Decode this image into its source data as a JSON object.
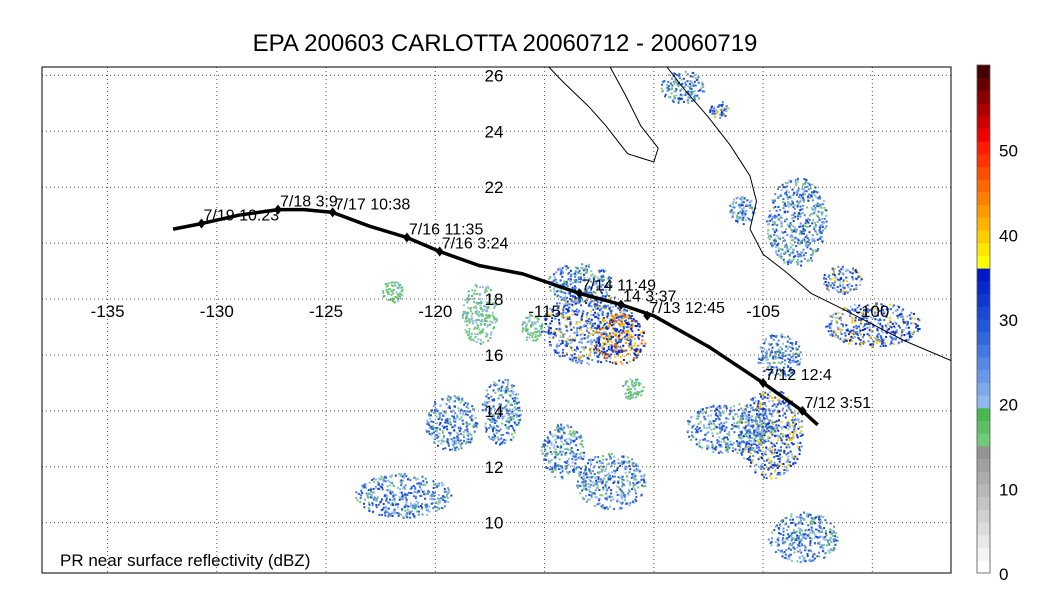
{
  "title": "EPA 200603 CARLOTTA 20060712 - 20060719",
  "caption": "PR near surface reflectivity (dBZ)",
  "map": {
    "lon_range": [
      -138,
      -96.4
    ],
    "lat_range": [
      8.2,
      26.3
    ],
    "lon_ticks": [
      -135,
      -130,
      -125,
      -120,
      -115,
      -110,
      -105,
      -100
    ],
    "lon_tick_labels": [
      "-135",
      "-130",
      "-125",
      "-120",
      "-115",
      "",
      "-105",
      "-100"
    ],
    "lat_ticks": [
      10,
      12,
      14,
      16,
      18,
      20,
      22,
      24,
      26
    ],
    "lat_tick_labels": [
      "10",
      "12",
      "14",
      "16",
      "18",
      "",
      "22",
      "24",
      "26"
    ],
    "grid": true,
    "coastline": [
      [
        -114.8,
        26.3
      ],
      [
        -114.2,
        25.8
      ],
      [
        -113.0,
        24.9
      ],
      [
        -112.2,
        24.2
      ],
      [
        -111.2,
        23.2
      ],
      [
        -110.0,
        22.9
      ],
      [
        -109.8,
        23.4
      ],
      [
        -110.6,
        24.2
      ],
      [
        -111.3,
        25.3
      ],
      [
        -112.0,
        26.3
      ]
    ],
    "mainland": [
      [
        -109.4,
        26.3
      ],
      [
        -108.6,
        25.5
      ],
      [
        -107.5,
        24.5
      ],
      [
        -106.5,
        23.5
      ],
      [
        -105.6,
        22.4
      ],
      [
        -105.3,
        21.5
      ],
      [
        -105.6,
        20.5
      ],
      [
        -105.0,
        19.6
      ],
      [
        -104.0,
        19.0
      ],
      [
        -102.8,
        18.2
      ],
      [
        -101.5,
        17.7
      ],
      [
        -100.0,
        17.1
      ],
      [
        -98.5,
        16.5
      ],
      [
        -96.4,
        15.8
      ]
    ]
  },
  "track": {
    "line_color": "#000000",
    "path": [
      [
        -132.0,
        20.5
      ],
      [
        -130.7,
        20.7
      ],
      [
        -129.0,
        21.0
      ],
      [
        -127.2,
        21.2
      ],
      [
        -126.0,
        21.2
      ],
      [
        -124.7,
        21.1
      ],
      [
        -123.0,
        20.6
      ],
      [
        -121.3,
        20.2
      ],
      [
        -119.8,
        19.7
      ],
      [
        -118.0,
        19.2
      ],
      [
        -116.0,
        18.9
      ],
      [
        -113.4,
        18.2
      ],
      [
        -111.5,
        17.8
      ],
      [
        -110.0,
        17.4
      ],
      [
        -107.5,
        16.3
      ],
      [
        -105.0,
        15.0
      ],
      [
        -103.2,
        14.0
      ],
      [
        -102.5,
        13.5
      ]
    ],
    "points": [
      {
        "label": "7/19 10:23",
        "lon": -130.7,
        "lat": 20.7
      },
      {
        "label": "7/18 3:9",
        "lon": -127.2,
        "lat": 21.2
      },
      {
        "label": "7/17 10:38",
        "lon": -124.7,
        "lat": 21.1
      },
      {
        "label": "7/16 11:35",
        "lon": -121.3,
        "lat": 20.2
      },
      {
        "label": "7/16 3:24",
        "lon": -119.8,
        "lat": 19.7
      },
      {
        "label": "7/14 11:49",
        "lon": -113.4,
        "lat": 18.2
      },
      {
        "label": "14 3:37",
        "lon": -111.5,
        "lat": 17.8
      },
      {
        "label": "7/13 12:45",
        "lon": -110.3,
        "lat": 17.4
      },
      {
        "label": "7/12 12:4",
        "lon": -105.0,
        "lat": 15.0
      },
      {
        "label": "7/12 3:51",
        "lon": -103.2,
        "lat": 14.0
      }
    ]
  },
  "colorbar": {
    "min": 0,
    "max": 60,
    "tick_values": [
      0,
      10,
      20,
      30,
      40,
      50
    ],
    "tick_labels": [
      "0",
      "10",
      "20",
      "30",
      "40",
      "50"
    ],
    "colors": [
      "#ffffff",
      "#f4f4f4",
      "#e8e8e8",
      "#dcdcdc",
      "#d0d0d0",
      "#c4c4c4",
      "#b8b8b8",
      "#acacac",
      "#a0a0a0",
      "#949494",
      "#72c97a",
      "#5cc063",
      "#46b84e",
      "#90b8f0",
      "#7ea8ec",
      "#6a98e8",
      "#5888e4",
      "#4478e0",
      "#3068dc",
      "#2058d8",
      "#1848d4",
      "#1038d0",
      "#0828cc",
      "#0018c8",
      "#ffff00",
      "#ffe600",
      "#ffcc00",
      "#ffb300",
      "#ff9900",
      "#ff8000",
      "#ff6600",
      "#ff4d00",
      "#ff3300",
      "#ff1a00",
      "#ee0000",
      "#cc0000",
      "#aa0000",
      "#880000",
      "#660000",
      "#440000"
    ]
  },
  "rain_regions": [
    {
      "lon": -113.0,
      "lat": 17.0,
      "rx": 2.2,
      "ry": 1.3,
      "level": 3
    },
    {
      "lon": -111.6,
      "lat": 16.6,
      "rx": 1.2,
      "ry": 0.9,
      "level": 4
    },
    {
      "lon": -113.4,
      "lat": 18.6,
      "rx": 1.5,
      "ry": 0.7,
      "level": 2
    },
    {
      "lon": -104.7,
      "lat": 13.2,
      "rx": 1.5,
      "ry": 1.6,
      "level": 3
    },
    {
      "lon": -106.6,
      "lat": 13.4,
      "rx": 2.0,
      "ry": 0.9,
      "level": 2
    },
    {
      "lon": -100.0,
      "lat": 17.1,
      "rx": 2.2,
      "ry": 0.8,
      "level": 3
    },
    {
      "lon": -101.4,
      "lat": 18.7,
      "rx": 0.9,
      "ry": 0.5,
      "level": 3
    },
    {
      "lon": -104.3,
      "lat": 16.0,
      "rx": 1.0,
      "ry": 0.8,
      "level": 2
    },
    {
      "lon": -117.0,
      "lat": 14.0,
      "rx": 0.9,
      "ry": 1.2,
      "level": 2
    },
    {
      "lon": -119.3,
      "lat": 13.6,
      "rx": 1.2,
      "ry": 1.0,
      "level": 2
    },
    {
      "lon": -121.5,
      "lat": 11.0,
      "rx": 2.2,
      "ry": 0.8,
      "level": 2
    },
    {
      "lon": -114.2,
      "lat": 12.6,
      "rx": 1.0,
      "ry": 1.0,
      "level": 2
    },
    {
      "lon": -112.0,
      "lat": 11.5,
      "rx": 1.6,
      "ry": 1.0,
      "level": 2
    },
    {
      "lon": -103.2,
      "lat": 9.5,
      "rx": 1.6,
      "ry": 0.9,
      "level": 2
    },
    {
      "lon": -103.5,
      "lat": 20.8,
      "rx": 1.4,
      "ry": 1.6,
      "level": 2
    },
    {
      "lon": -106.0,
      "lat": 21.2,
      "rx": 0.6,
      "ry": 0.5,
      "level": 2
    },
    {
      "lon": -108.7,
      "lat": 25.6,
      "rx": 1.0,
      "ry": 0.6,
      "level": 2
    },
    {
      "lon": -107.0,
      "lat": 24.8,
      "rx": 0.5,
      "ry": 0.3,
      "level": 3
    },
    {
      "lon": -118.0,
      "lat": 17.5,
      "rx": 0.8,
      "ry": 1.1,
      "level": 1
    },
    {
      "lon": -115.6,
      "lat": 17.0,
      "rx": 0.5,
      "ry": 0.5,
      "level": 1
    },
    {
      "lon": -122.0,
      "lat": 18.3,
      "rx": 0.5,
      "ry": 0.4,
      "level": 1
    },
    {
      "lon": -111.0,
      "lat": 14.8,
      "rx": 0.5,
      "ry": 0.4,
      "level": 1
    }
  ]
}
